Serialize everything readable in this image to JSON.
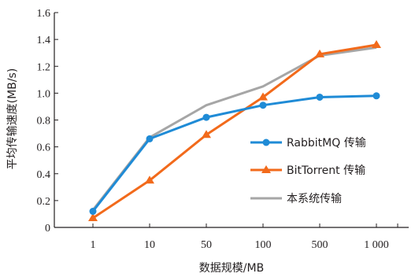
{
  "chart_data": {
    "type": "line",
    "categories": [
      "1",
      "10",
      "50",
      "100",
      "500",
      "1 000"
    ],
    "xlabel": "数据规模/MB",
    "ylabel": "平均传输速度(MB/s)",
    "ylim": [
      0,
      1.6
    ],
    "yticks": [
      "0",
      "0.2",
      "0.4",
      "0.6",
      "0.8",
      "1.0",
      "1.2",
      "1.4",
      "1.6"
    ],
    "grid": false,
    "legend_position": "right",
    "series": [
      {
        "name": "RabbitMQ 传输",
        "values": [
          0.12,
          0.66,
          0.82,
          0.91,
          0.97,
          0.98
        ],
        "color": "#1f8bd6",
        "marker": "circle"
      },
      {
        "name": "BitTorrent 传输",
        "values": [
          0.07,
          0.35,
          0.69,
          0.97,
          1.29,
          1.36
        ],
        "color": "#f26a1b",
        "marker": "triangle"
      },
      {
        "name": "本系统传输",
        "values": [
          0.13,
          0.67,
          0.91,
          1.05,
          1.28,
          1.34
        ],
        "color": "#a6a6a6",
        "marker": "none"
      }
    ]
  }
}
